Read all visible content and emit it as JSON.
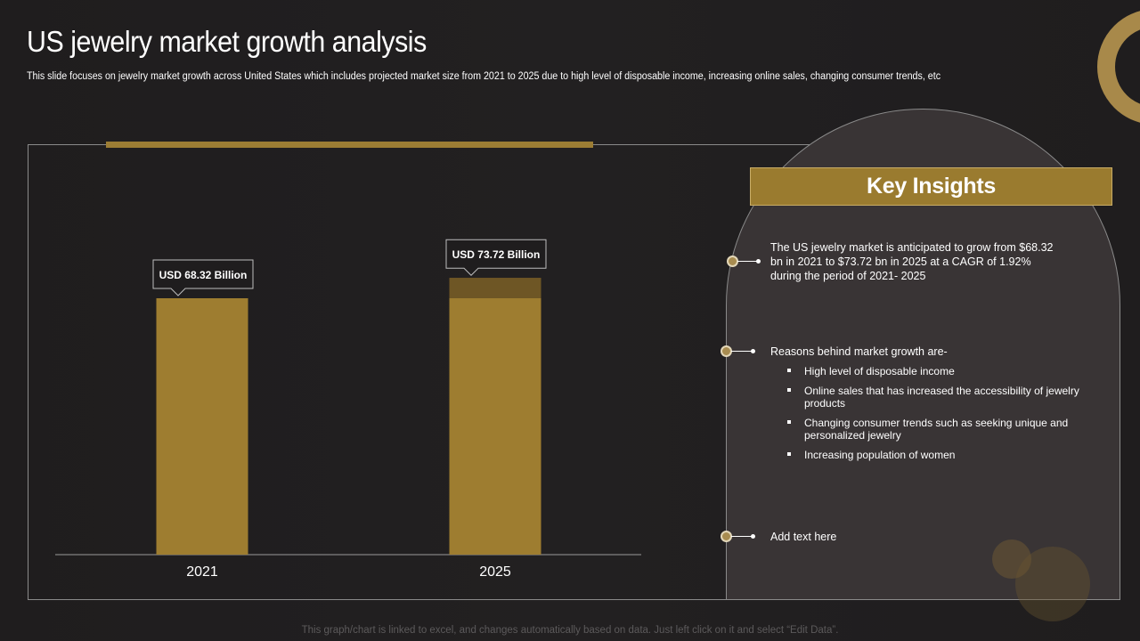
{
  "slide": {
    "title": "US jewelry market growth analysis",
    "subtitle": "This slide focuses on jewelry market growth across United States which includes projected market size from 2021 to 2025 due to high level of disposable income, increasing online sales, changing consumer trends, etc"
  },
  "chart_data": {
    "type": "bar",
    "categories": [
      "2021",
      "2025"
    ],
    "values": [
      68.32,
      73.72
    ],
    "data_labels": [
      "USD 68.32 Billion",
      "USD 73.72 Billion"
    ],
    "highlight": {
      "category": "2025",
      "from": 68.32,
      "to": 73.72
    },
    "title": "",
    "xlabel": "",
    "ylabel": "",
    "ylim": [
      0,
      80
    ],
    "grid": false,
    "colors": {
      "bar": "#9e7d30",
      "increment": "#6e5625"
    }
  },
  "insights": {
    "heading": "Key Insights",
    "point1": "The US jewelry market is anticipated to grow from $68.32 bn in 2021 to $73.72 bn in 2025 at a CAGR of 1.92% during the period of 2021- 2025",
    "point2": "Reasons behind market growth are-",
    "reasons": [
      "High level of disposable income",
      "Online sales that has increased the accessibility of jewelry products",
      "Changing consumer trends such as seeking unique and personalized jewelry",
      "Increasing population of women"
    ],
    "point3": "Add text here"
  },
  "footer": "This graph/chart is linked to excel, and changes automatically based on data. Just left click on it and select “Edit Data”.",
  "colors": {
    "background": "#1f1d1e",
    "accent_gold": "#9c7d34",
    "panel": "#393435"
  }
}
